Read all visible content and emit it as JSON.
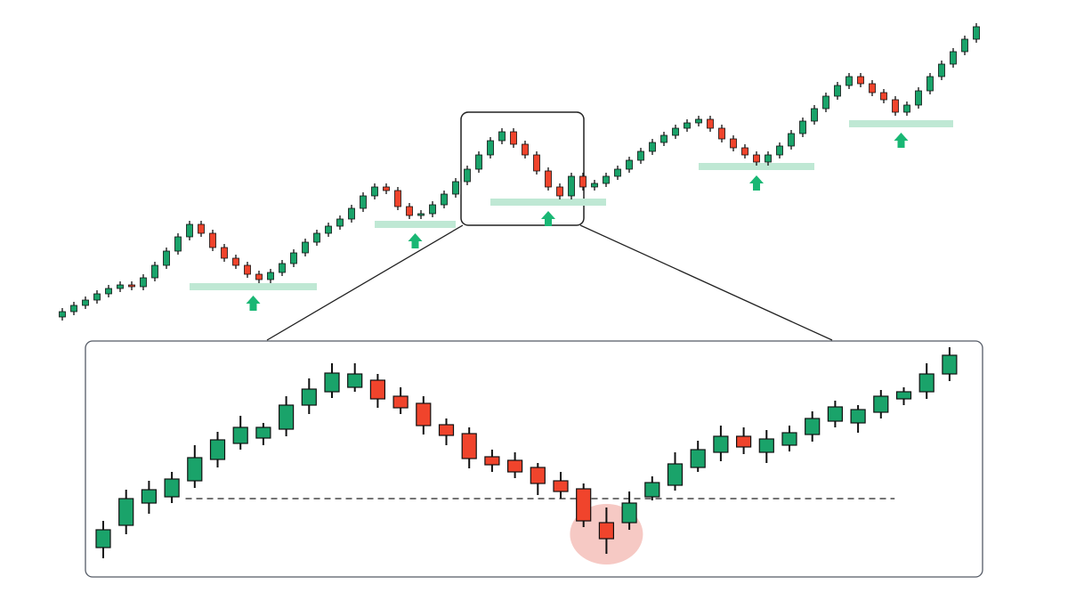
{
  "chart_data": [
    {
      "type": "candlestick",
      "up_color": "#1aa36a",
      "down_color": "#f0442c",
      "support_color": "#bfe8d4",
      "arrow_color": "#19b774",
      "ylim": [
        0,
        350
      ],
      "open": [
        14,
        20,
        27,
        33,
        40,
        46,
        50,
        48,
        58,
        72,
        88,
        104,
        118,
        108,
        92,
        80,
        72,
        62,
        56,
        64,
        74,
        86,
        98,
        108,
        116,
        124,
        136,
        150,
        160,
        156,
        138,
        128,
        130,
        140,
        152,
        166,
        180,
        196,
        212,
        222,
        208,
        196,
        178,
        160,
        150,
        172,
        160,
        164,
        172,
        180,
        190,
        200,
        210,
        218,
        226,
        232,
        236,
        226,
        214,
        204,
        196,
        188,
        196,
        206,
        220,
        234,
        248,
        262,
        274,
        284,
        276,
        266,
        258,
        244,
        252,
        268,
        284,
        298,
        312,
        326
      ],
      "high": [
        24,
        31,
        37,
        44,
        50,
        54,
        54,
        62,
        76,
        92,
        108,
        122,
        122,
        112,
        96,
        84,
        76,
        66,
        68,
        78,
        90,
        102,
        112,
        120,
        128,
        140,
        154,
        164,
        164,
        160,
        142,
        134,
        144,
        156,
        170,
        184,
        200,
        216,
        226,
        226,
        212,
        200,
        182,
        164,
        176,
        176,
        168,
        176,
        184,
        194,
        204,
        214,
        222,
        230,
        236,
        240,
        240,
        230,
        218,
        208,
        200,
        200,
        210,
        224,
        238,
        252,
        266,
        278,
        288,
        288,
        280,
        270,
        262,
        256,
        272,
        288,
        302,
        316,
        330,
        344
      ],
      "low": [
        10,
        16,
        23,
        29,
        36,
        42,
        44,
        44,
        54,
        68,
        84,
        100,
        104,
        88,
        76,
        68,
        58,
        52,
        52,
        60,
        70,
        82,
        94,
        104,
        112,
        120,
        132,
        146,
        152,
        134,
        124,
        124,
        126,
        136,
        148,
        162,
        176,
        192,
        208,
        204,
        192,
        174,
        156,
        146,
        146,
        156,
        156,
        160,
        168,
        176,
        186,
        196,
        206,
        214,
        222,
        228,
        222,
        210,
        200,
        192,
        184,
        184,
        192,
        202,
        216,
        230,
        244,
        258,
        270,
        272,
        262,
        254,
        240,
        240,
        248,
        264,
        280,
        294,
        308,
        322
      ],
      "close": [
        20,
        27,
        33,
        40,
        46,
        50,
        48,
        58,
        72,
        88,
        104,
        118,
        108,
        92,
        80,
        72,
        62,
        56,
        64,
        74,
        86,
        98,
        108,
        116,
        124,
        136,
        150,
        160,
        156,
        138,
        128,
        130,
        140,
        152,
        166,
        180,
        196,
        212,
        222,
        208,
        196,
        178,
        160,
        150,
        172,
        160,
        164,
        172,
        180,
        190,
        200,
        210,
        218,
        226,
        232,
        236,
        226,
        214,
        204,
        196,
        188,
        196,
        206,
        220,
        234,
        248,
        262,
        274,
        284,
        276,
        266,
        258,
        244,
        252,
        268,
        284,
        298,
        312,
        326,
        340
      ],
      "supports": [
        {
          "level": 48,
          "from": 11,
          "to": 22
        },
        {
          "level": 118,
          "from": 27,
          "to": 34
        },
        {
          "level": 143,
          "from": 37,
          "to": 47
        },
        {
          "level": 183,
          "from": 55,
          "to": 65
        },
        {
          "level": 231,
          "from": 68,
          "to": 77
        }
      ]
    },
    {
      "type": "candlestick",
      "up_color": "#1aa36a",
      "down_color": "#f0442c",
      "highlight_color": "#f6c9c4",
      "ylim": [
        0,
        260
      ],
      "open": [
        30,
        55,
        80,
        87,
        105,
        129,
        147,
        153,
        163,
        190,
        205,
        210,
        218,
        200,
        192,
        168,
        158,
        132,
        128,
        120,
        105,
        96,
        58,
        58,
        87,
        100,
        120,
        137,
        155,
        137,
        145,
        157,
        172,
        170,
        182,
        197,
        205,
        225
      ],
      "high": [
        60,
        95,
        105,
        115,
        145,
        160,
        178,
        170,
        200,
        220,
        237,
        237,
        225,
        210,
        200,
        175,
        165,
        140,
        137,
        125,
        115,
        102,
        75,
        93,
        110,
        137,
        150,
        167,
        165,
        162,
        167,
        183,
        195,
        190,
        207,
        210,
        237,
        255
      ],
      "low": [
        18,
        45,
        68,
        80,
        97,
        120,
        140,
        145,
        155,
        180,
        198,
        205,
        187,
        180,
        157,
        145,
        119,
        115,
        108,
        89,
        85,
        53,
        23,
        50,
        83,
        94,
        115,
        127,
        135,
        125,
        138,
        149,
        165,
        159,
        175,
        190,
        197,
        217
      ],
      "close": [
        50,
        85,
        95,
        107,
        131,
        151,
        165,
        165,
        190,
        208,
        226,
        225,
        197,
        187,
        167,
        156,
        130,
        123,
        115,
        102,
        93,
        60,
        40,
        80,
        103,
        124,
        140,
        155,
        143,
        152,
        159,
        175,
        188,
        185,
        200,
        205,
        225,
        246
      ],
      "reference_line": {
        "level": 85,
        "from": 3.6,
        "to": 34.6
      },
      "highlight": 22
    }
  ]
}
